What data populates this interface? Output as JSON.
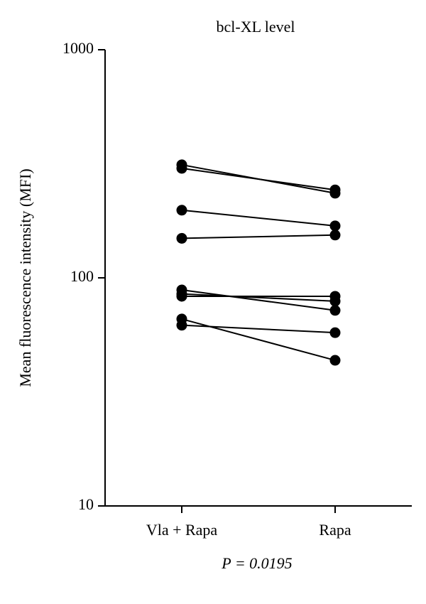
{
  "chart_data": {
    "type": "paired-line",
    "title": "bcl-XL level",
    "ylabel": "Mean fluorescence intensity (MFI)",
    "annotation": "P = 0.0195",
    "categories": [
      "Vla + Rapa",
      "Rapa"
    ],
    "log_scale": true,
    "color": "#000000",
    "ylim": [
      10,
      1000
    ],
    "yticks": [
      10,
      100,
      1000
    ],
    "series": [
      {
        "values": [
          313,
          235
        ]
      },
      {
        "values": [
          302,
          243
        ]
      },
      {
        "values": [
          198,
          169
        ]
      },
      {
        "values": [
          149,
          154
        ]
      },
      {
        "values": [
          88.5,
          72
        ]
      },
      {
        "values": [
          85,
          79
        ]
      },
      {
        "values": [
          83,
          83
        ]
      },
      {
        "values": [
          66,
          43.5
        ]
      },
      {
        "values": [
          62,
          57.5
        ]
      }
    ]
  }
}
